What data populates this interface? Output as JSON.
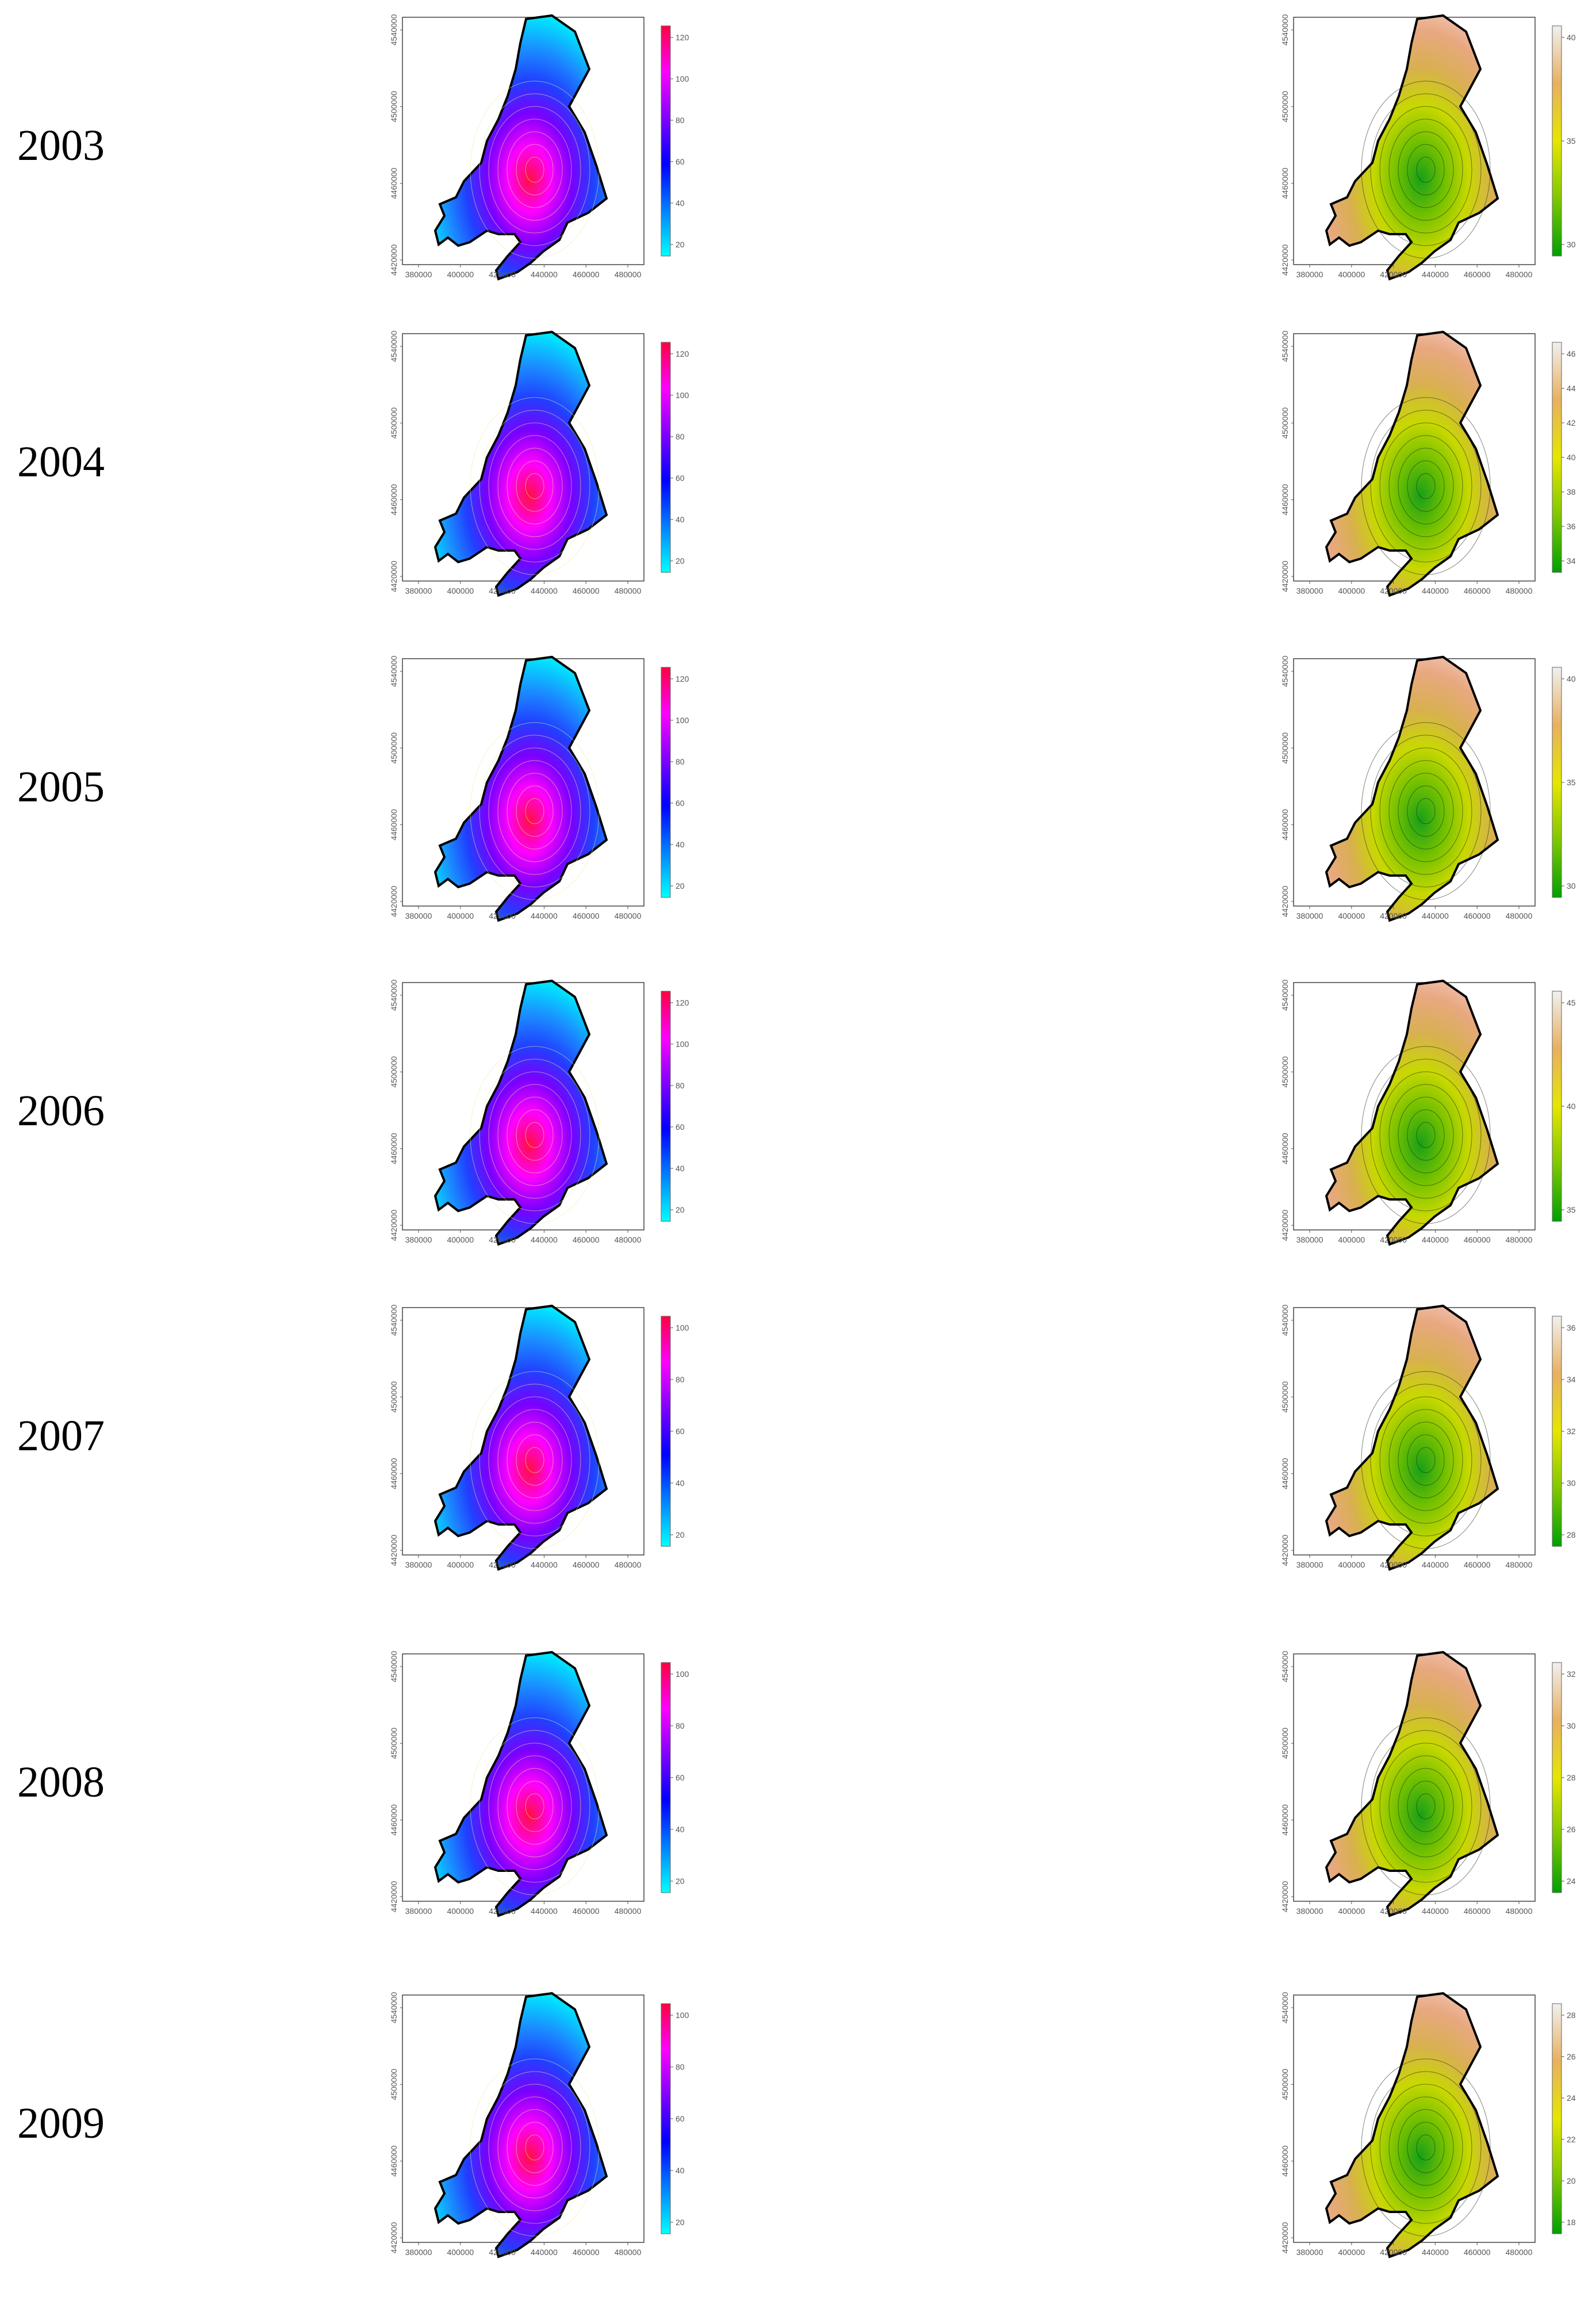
{
  "rows": [
    {
      "year": "2003",
      "left": {
        "scale": [
          "20",
          "40",
          "60",
          "80",
          "100",
          "120"
        ],
        "xticks": [
          "380000",
          "400000",
          "420000",
          "440000",
          "460000",
          "480000"
        ],
        "yticks": [
          "4420000",
          "4460000",
          "4500000",
          "4540000"
        ]
      },
      "right": {
        "scale": [
          "30",
          "35",
          "40"
        ],
        "xticks": [
          "380000",
          "400000",
          "420000",
          "440000",
          "460000",
          "480000"
        ],
        "yticks": [
          "4420000",
          "4460000",
          "4500000",
          "4540000"
        ]
      }
    },
    {
      "year": "2004",
      "left": {
        "scale": [
          "20",
          "40",
          "60",
          "80",
          "100",
          "120"
        ],
        "xticks": [
          "380000",
          "400000",
          "420000",
          "440000",
          "460000",
          "480000"
        ],
        "yticks": [
          "4420000",
          "4460000",
          "4500000",
          "4540000"
        ]
      },
      "right": {
        "scale": [
          "34",
          "36",
          "38",
          "40",
          "42",
          "44",
          "46"
        ],
        "xticks": [
          "380000",
          "400000",
          "420000",
          "440000",
          "460000",
          "480000"
        ],
        "yticks": [
          "4420000",
          "4460000",
          "4500000",
          "4540000"
        ]
      }
    },
    {
      "year": "2005",
      "left": {
        "scale": [
          "20",
          "40",
          "60",
          "80",
          "100",
          "120"
        ],
        "xticks": [
          "380000",
          "400000",
          "420000",
          "440000",
          "460000",
          "480000"
        ],
        "yticks": [
          "4420000",
          "4460000",
          "4500000",
          "4540000"
        ]
      },
      "right": {
        "scale": [
          "30",
          "35",
          "40"
        ],
        "xticks": [
          "380000",
          "400000",
          "420000",
          "440000",
          "460000",
          "480000"
        ],
        "yticks": [
          "4420000",
          "4460000",
          "4500000",
          "4540000"
        ]
      }
    },
    {
      "year": "2006",
      "left": {
        "scale": [
          "20",
          "40",
          "60",
          "80",
          "100",
          "120"
        ],
        "xticks": [
          "380000",
          "400000",
          "420000",
          "440000",
          "460000",
          "480000"
        ],
        "yticks": [
          "4420000",
          "4460000",
          "4500000",
          "4540000"
        ]
      },
      "right": {
        "scale": [
          "35",
          "40",
          "45"
        ],
        "xticks": [
          "380000",
          "400000",
          "420000",
          "440000",
          "460000",
          "480000"
        ],
        "yticks": [
          "4420000",
          "4460000",
          "4500000",
          "4540000"
        ]
      }
    },
    {
      "year": "2007",
      "left": {
        "scale": [
          "20",
          "40",
          "60",
          "80",
          "100"
        ],
        "xticks": [
          "380000",
          "400000",
          "420000",
          "440000",
          "460000",
          "480000"
        ],
        "yticks": [
          "4420000",
          "4460000",
          "4500000",
          "4540000"
        ]
      },
      "right": {
        "scale": [
          "28",
          "30",
          "32",
          "34",
          "36"
        ],
        "xticks": [
          "380000",
          "400000",
          "420000",
          "440000",
          "460000",
          "480000"
        ],
        "yticks": [
          "4420000",
          "4460000",
          "4500000",
          "4540000"
        ]
      }
    },
    {
      "year": "2008",
      "left": {
        "scale": [
          "20",
          "40",
          "60",
          "80",
          "100"
        ],
        "xticks": [
          "380000",
          "400000",
          "420000",
          "440000",
          "460000",
          "480000"
        ],
        "yticks": [
          "4420000",
          "4460000",
          "4500000",
          "4540000"
        ]
      },
      "right": {
        "scale": [
          "24",
          "26",
          "28",
          "30",
          "32"
        ],
        "xticks": [
          "380000",
          "400000",
          "420000",
          "440000",
          "460000",
          "480000"
        ],
        "yticks": [
          "4420000",
          "4460000",
          "4500000",
          "4540000"
        ]
      }
    },
    {
      "year": "2009",
      "left": {
        "scale": [
          "20",
          "40",
          "60",
          "80",
          "100"
        ],
        "xticks": [
          "380000",
          "400000",
          "420000",
          "440000",
          "460000",
          "480000"
        ],
        "yticks": [
          "4420000",
          "4460000",
          "4500000",
          "4540000"
        ]
      },
      "right": {
        "scale": [
          "18",
          "20",
          "22",
          "24",
          "26",
          "28"
        ],
        "xticks": [
          "380000",
          "400000",
          "420000",
          "440000",
          "460000",
          "480000"
        ],
        "yticks": [
          "4420000",
          "4460000",
          "4500000",
          "4540000"
        ]
      }
    }
  ],
  "colors": {
    "left_scale": [
      "#00ffff",
      "#0080ff",
      "#0000ff",
      "#8000ff",
      "#ff00ff",
      "#ff0040"
    ],
    "right_scale": [
      "#00a000",
      "#80c800",
      "#e6e600",
      "#e8b060",
      "#f0f0f0"
    ],
    "outline": "#000000"
  }
}
